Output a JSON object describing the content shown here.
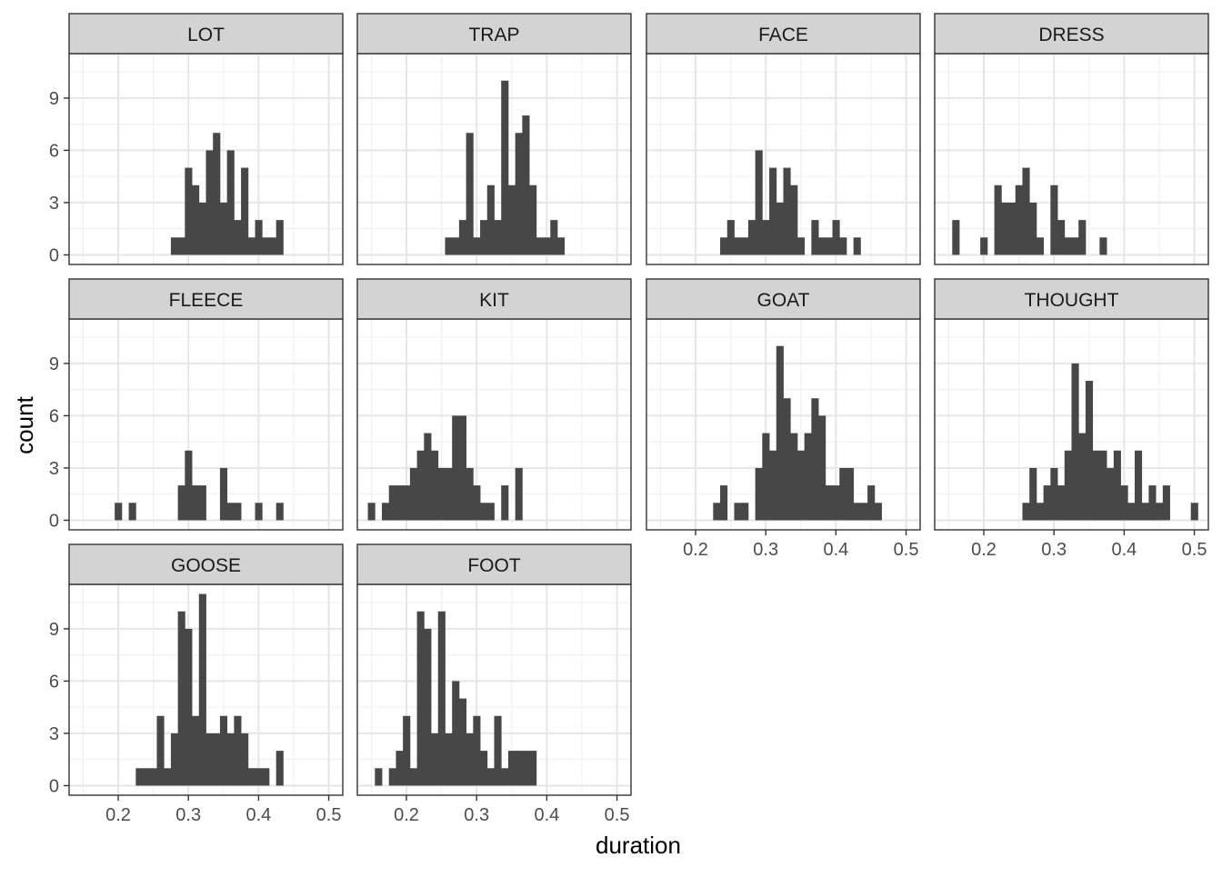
{
  "chart_data": {
    "type": "bar",
    "subtype": "faceted-histogram",
    "title": "",
    "xlabel": "duration",
    "ylabel": "count",
    "xlim": [
      0.13,
      0.52
    ],
    "ylim": [
      -0.55,
      11.55
    ],
    "xticks": [
      0.2,
      0.3,
      0.4,
      0.5
    ],
    "xtick_labels": [
      "0.2",
      "0.3",
      "0.4",
      "0.5"
    ],
    "yticks": [
      0,
      3,
      6,
      9
    ],
    "ytick_labels": [
      "0",
      "3",
      "6",
      "9"
    ],
    "bin_width": 0.01,
    "grid": true,
    "theme": "black-and-white",
    "bar_color": "#474747",
    "strip_fill": "#d3d3d3",
    "facets": [
      {
        "name": "LOT",
        "bins": [
          [
            0.28,
            1
          ],
          [
            0.29,
            1
          ],
          [
            0.3,
            5
          ],
          [
            0.31,
            4
          ],
          [
            0.32,
            3
          ],
          [
            0.33,
            6
          ],
          [
            0.34,
            7
          ],
          [
            0.35,
            3
          ],
          [
            0.36,
            6
          ],
          [
            0.37,
            2
          ],
          [
            0.38,
            5
          ],
          [
            0.39,
            1
          ],
          [
            0.4,
            2
          ],
          [
            0.41,
            1
          ],
          [
            0.42,
            1
          ],
          [
            0.43,
            2
          ]
        ]
      },
      {
        "name": "TRAP",
        "bins": [
          [
            0.26,
            1
          ],
          [
            0.27,
            1
          ],
          [
            0.28,
            2
          ],
          [
            0.29,
            7
          ],
          [
            0.3,
            1
          ],
          [
            0.31,
            2
          ],
          [
            0.32,
            4
          ],
          [
            0.33,
            2
          ],
          [
            0.34,
            10
          ],
          [
            0.35,
            4
          ],
          [
            0.36,
            7
          ],
          [
            0.37,
            8
          ],
          [
            0.38,
            4
          ],
          [
            0.39,
            1
          ],
          [
            0.4,
            1
          ],
          [
            0.41,
            2
          ],
          [
            0.42,
            1
          ]
        ]
      },
      {
        "name": "FACE",
        "bins": [
          [
            0.24,
            1
          ],
          [
            0.25,
            2
          ],
          [
            0.26,
            1
          ],
          [
            0.27,
            1
          ],
          [
            0.28,
            2
          ],
          [
            0.29,
            6
          ],
          [
            0.3,
            2
          ],
          [
            0.31,
            5
          ],
          [
            0.32,
            3
          ],
          [
            0.33,
            5
          ],
          [
            0.34,
            4
          ],
          [
            0.35,
            1
          ],
          [
            0.37,
            2
          ],
          [
            0.38,
            1
          ],
          [
            0.39,
            1
          ],
          [
            0.4,
            2
          ],
          [
            0.41,
            1
          ],
          [
            0.43,
            1
          ]
        ]
      },
      {
        "name": "DRESS",
        "bins": [
          [
            0.16,
            2
          ],
          [
            0.2,
            1
          ],
          [
            0.22,
            4
          ],
          [
            0.23,
            3
          ],
          [
            0.24,
            3
          ],
          [
            0.25,
            4
          ],
          [
            0.26,
            5
          ],
          [
            0.27,
            3
          ],
          [
            0.28,
            1
          ],
          [
            0.3,
            4
          ],
          [
            0.31,
            2
          ],
          [
            0.32,
            1
          ],
          [
            0.33,
            1
          ],
          [
            0.34,
            2
          ],
          [
            0.37,
            1
          ]
        ]
      },
      {
        "name": "FLEECE",
        "bins": [
          [
            0.2,
            1
          ],
          [
            0.22,
            1
          ],
          [
            0.29,
            2
          ],
          [
            0.3,
            4
          ],
          [
            0.31,
            2
          ],
          [
            0.32,
            2
          ],
          [
            0.35,
            3
          ],
          [
            0.36,
            1
          ],
          [
            0.37,
            1
          ],
          [
            0.4,
            1
          ],
          [
            0.43,
            1
          ]
        ]
      },
      {
        "name": "KIT",
        "bins": [
          [
            0.15,
            1
          ],
          [
            0.17,
            1
          ],
          [
            0.18,
            2
          ],
          [
            0.19,
            2
          ],
          [
            0.2,
            2
          ],
          [
            0.21,
            3
          ],
          [
            0.22,
            4
          ],
          [
            0.23,
            5
          ],
          [
            0.24,
            4
          ],
          [
            0.25,
            3
          ],
          [
            0.26,
            3
          ],
          [
            0.27,
            6
          ],
          [
            0.28,
            6
          ],
          [
            0.29,
            3
          ],
          [
            0.3,
            2
          ],
          [
            0.31,
            1
          ],
          [
            0.32,
            1
          ],
          [
            0.34,
            2
          ],
          [
            0.36,
            3
          ]
        ]
      },
      {
        "name": "GOAT",
        "bins": [
          [
            0.23,
            1
          ],
          [
            0.24,
            2
          ],
          [
            0.26,
            1
          ],
          [
            0.27,
            1
          ],
          [
            0.29,
            3
          ],
          [
            0.3,
            5
          ],
          [
            0.31,
            4
          ],
          [
            0.32,
            10
          ],
          [
            0.33,
            7
          ],
          [
            0.34,
            5
          ],
          [
            0.35,
            4
          ],
          [
            0.36,
            5
          ],
          [
            0.37,
            7
          ],
          [
            0.38,
            6
          ],
          [
            0.39,
            2
          ],
          [
            0.4,
            2
          ],
          [
            0.41,
            3
          ],
          [
            0.42,
            3
          ],
          [
            0.43,
            1
          ],
          [
            0.44,
            1
          ],
          [
            0.45,
            2
          ],
          [
            0.46,
            1
          ]
        ]
      },
      {
        "name": "THOUGHT",
        "bins": [
          [
            0.26,
            1
          ],
          [
            0.27,
            3
          ],
          [
            0.28,
            1
          ],
          [
            0.29,
            2
          ],
          [
            0.3,
            3
          ],
          [
            0.31,
            2
          ],
          [
            0.32,
            4
          ],
          [
            0.33,
            9
          ],
          [
            0.34,
            5
          ],
          [
            0.35,
            8
          ],
          [
            0.36,
            4
          ],
          [
            0.37,
            4
          ],
          [
            0.38,
            3
          ],
          [
            0.39,
            4
          ],
          [
            0.4,
            2
          ],
          [
            0.41,
            1
          ],
          [
            0.42,
            4
          ],
          [
            0.43,
            1
          ],
          [
            0.44,
            2
          ],
          [
            0.45,
            1
          ],
          [
            0.46,
            2
          ],
          [
            0.5,
            1
          ]
        ]
      },
      {
        "name": "GOOSE",
        "bins": [
          [
            0.23,
            1
          ],
          [
            0.24,
            1
          ],
          [
            0.25,
            1
          ],
          [
            0.26,
            4
          ],
          [
            0.27,
            1
          ],
          [
            0.28,
            3
          ],
          [
            0.29,
            10
          ],
          [
            0.3,
            9
          ],
          [
            0.31,
            4
          ],
          [
            0.32,
            11
          ],
          [
            0.33,
            3
          ],
          [
            0.34,
            3
          ],
          [
            0.35,
            4
          ],
          [
            0.36,
            3
          ],
          [
            0.37,
            4
          ],
          [
            0.38,
            3
          ],
          [
            0.39,
            1
          ],
          [
            0.4,
            1
          ],
          [
            0.41,
            1
          ],
          [
            0.43,
            2
          ]
        ]
      },
      {
        "name": "FOOT",
        "bins": [
          [
            0.16,
            1
          ],
          [
            0.18,
            1
          ],
          [
            0.19,
            2
          ],
          [
            0.2,
            4
          ],
          [
            0.21,
            1
          ],
          [
            0.22,
            10
          ],
          [
            0.23,
            9
          ],
          [
            0.24,
            3
          ],
          [
            0.25,
            10
          ],
          [
            0.26,
            3
          ],
          [
            0.27,
            6
          ],
          [
            0.28,
            5
          ],
          [
            0.29,
            3
          ],
          [
            0.3,
            4
          ],
          [
            0.31,
            2
          ],
          [
            0.32,
            1
          ],
          [
            0.33,
            4
          ],
          [
            0.34,
            1
          ],
          [
            0.35,
            2
          ],
          [
            0.36,
            2
          ],
          [
            0.37,
            2
          ],
          [
            0.38,
            2
          ]
        ]
      }
    ]
  }
}
